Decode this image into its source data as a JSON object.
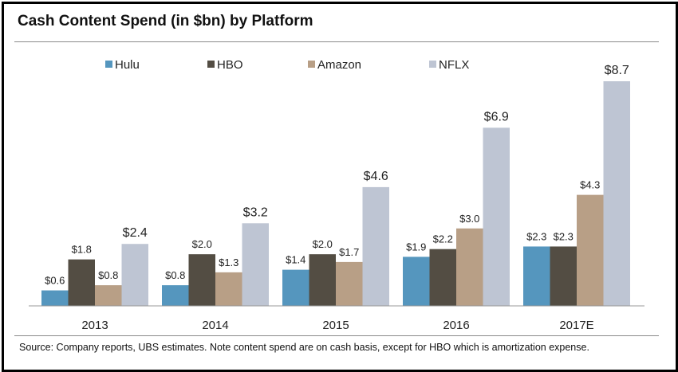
{
  "title": "Cash Content Spend (in $bn) by Platform",
  "source": "Source: Company reports, UBS estimates. Note content spend are on cash basis, except for HBO which is amortization expense.",
  "chart_data": {
    "type": "bar",
    "title": "Cash Content Spend (in $bn) by Platform",
    "xlabel": "",
    "ylabel": "",
    "ylim": [
      0,
      9
    ],
    "grid": false,
    "legend_position": "top",
    "categories": [
      "2013",
      "2014",
      "2015",
      "2016",
      "2017E"
    ],
    "series": [
      {
        "name": "Hulu",
        "color": "#5596be",
        "values": [
          0.6,
          0.8,
          1.4,
          1.9,
          2.3
        ],
        "labels": [
          "$0.6",
          "$0.8",
          "$1.4",
          "$1.9",
          "$2.3"
        ]
      },
      {
        "name": "HBO",
        "color": "#534d43",
        "values": [
          1.8,
          2.0,
          2.0,
          2.2,
          2.3
        ],
        "labels": [
          "$1.8",
          "$2.0",
          "$2.0",
          "$2.2",
          "$2.3"
        ]
      },
      {
        "name": "Amazon",
        "color": "#b89f86",
        "values": [
          0.8,
          1.3,
          1.7,
          3.0,
          4.3
        ],
        "labels": [
          "$0.8",
          "$1.3",
          "$1.7",
          "$3.0",
          "$4.3"
        ]
      },
      {
        "name": "NFLX",
        "color": "#bec5d3",
        "values": [
          2.4,
          3.2,
          4.6,
          6.9,
          8.7
        ],
        "labels": [
          "$2.4",
          "$3.2",
          "$4.6",
          "$6.9",
          "$8.7"
        ]
      }
    ]
  }
}
